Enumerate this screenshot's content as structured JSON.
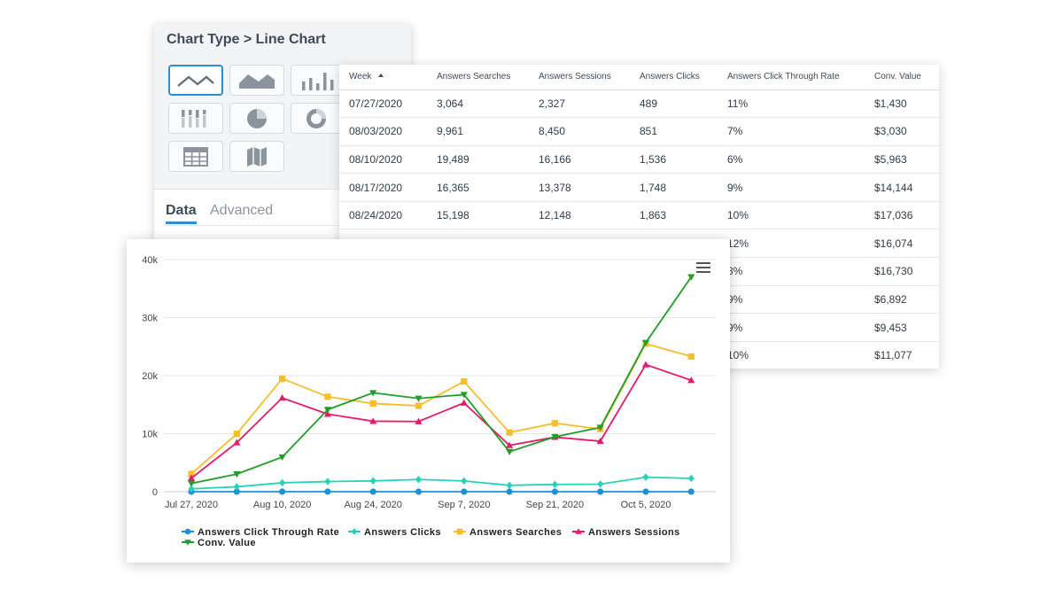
{
  "chart_type_panel": {
    "title": "Chart Type > Line Chart",
    "icons": [
      {
        "name": "line-chart-icon",
        "selected": true
      },
      {
        "name": "area-chart-icon",
        "selected": false
      },
      {
        "name": "bar-chart-icon",
        "selected": false
      },
      {
        "name": "stacked-bar-icon",
        "selected": false
      },
      {
        "name": "pie-chart-icon",
        "selected": false
      },
      {
        "name": "donut-chart-icon",
        "selected": false
      },
      {
        "name": "table-icon",
        "selected": false
      },
      {
        "name": "map-icon",
        "selected": false
      }
    ],
    "tabs": [
      {
        "label": "Data",
        "active": true
      },
      {
        "label": "Advanced",
        "active": false
      }
    ]
  },
  "data_table": {
    "columns": [
      "Week",
      "Answers Searches",
      "Answers Sessions",
      "Answers Clicks",
      "Answers Click Through Rate",
      "Conv. Value"
    ],
    "rows": [
      [
        "07/27/2020",
        "3,064",
        "2,327",
        "489",
        "11%",
        "$1,430"
      ],
      [
        "08/03/2020",
        "9,961",
        "8,450",
        "851",
        "7%",
        "$3,030"
      ],
      [
        "08/10/2020",
        "19,489",
        "16,166",
        "1,536",
        "6%",
        "$5,963"
      ],
      [
        "08/17/2020",
        "16,365",
        "13,378",
        "1,748",
        "9%",
        "$14,144"
      ],
      [
        "08/24/2020",
        "15,198",
        "12,148",
        "1,863",
        "10%",
        "$17,036"
      ],
      [
        "",
        "",
        "",
        "",
        "12%",
        "$16,074"
      ],
      [
        "",
        "",
        "",
        "",
        "8%",
        "$16,730"
      ],
      [
        "",
        "",
        "",
        "",
        "9%",
        "$6,892"
      ],
      [
        "",
        "",
        "",
        "",
        "9%",
        "$9,453"
      ],
      [
        "",
        "",
        "",
        "",
        "10%",
        "$11,077"
      ]
    ]
  },
  "chart_data": {
    "type": "line",
    "title": "",
    "xlabel": "",
    "ylabel": "",
    "ylim": [
      0,
      40000
    ],
    "y_ticks": [
      "0",
      "10k",
      "20k",
      "30k",
      "40k"
    ],
    "x_tick_labels": [
      "Jul 27, 2020",
      "Aug 10, 2020",
      "Aug 24, 2020",
      "Sep 7, 2020",
      "Sep 21, 2020",
      "Oct 5, 2020"
    ],
    "x": [
      "Jul 27, 2020",
      "Aug 3, 2020",
      "Aug 10, 2020",
      "Aug 17, 2020",
      "Aug 24, 2020",
      "Aug 31, 2020",
      "Sep 7, 2020",
      "Sep 14, 2020",
      "Sep 21, 2020",
      "Sep 28, 2020",
      "Oct 5, 2020",
      "Oct 12, 2020"
    ],
    "series": [
      {
        "name": "Answers Click Through Rate",
        "color": "#1f8fd6",
        "marker": "circle",
        "values": [
          0.11,
          0.07,
          0.06,
          0.09,
          0.1,
          0.12,
          0.08,
          0.09,
          0.09,
          0.1,
          0.1,
          0.1
        ]
      },
      {
        "name": "Answers Clicks",
        "color": "#27d3b8",
        "marker": "diamond",
        "values": [
          489,
          851,
          1536,
          1748,
          1863,
          2100,
          1850,
          1100,
          1250,
          1300,
          2500,
          2300
        ]
      },
      {
        "name": "Answers Searches",
        "color": "#f7bd2b",
        "marker": "square",
        "values": [
          3064,
          9961,
          19489,
          16365,
          15198,
          14800,
          19000,
          10200,
          11800,
          10800,
          25500,
          23300
        ]
      },
      {
        "name": "Answers Sessions",
        "color": "#e8196b",
        "marker": "triangle-up",
        "values": [
          2327,
          8450,
          16166,
          13378,
          12148,
          12100,
          15300,
          8000,
          9400,
          8700,
          21900,
          19200
        ]
      },
      {
        "name": "Conv. Value",
        "color": "#1f9e2a",
        "marker": "triangle-down",
        "values": [
          1430,
          3030,
          5963,
          14144,
          17036,
          16074,
          16730,
          6892,
          9453,
          11077,
          25700,
          37000
        ]
      }
    ],
    "legend_position": "bottom"
  }
}
